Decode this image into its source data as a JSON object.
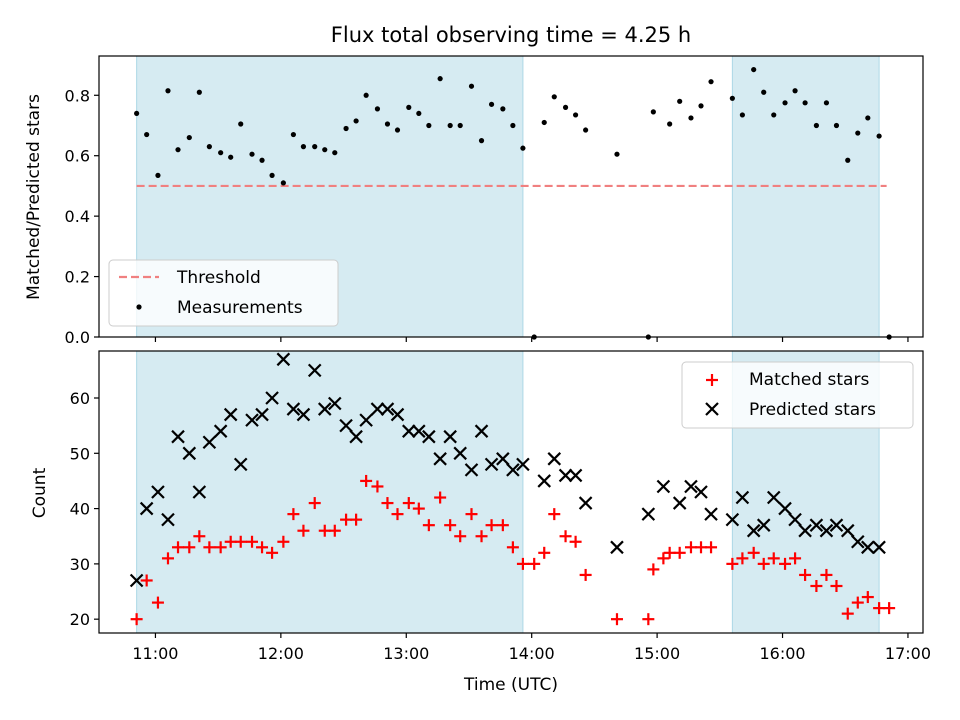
{
  "title": "Flux total observing time = 4.25 h",
  "chart_data": [
    {
      "type": "scatter",
      "panel": "top",
      "ylabel": "Matched/Predicted stars",
      "xlabel": "",
      "ylim": [
        0,
        0.93
      ],
      "yticks": [
        0.0,
        0.2,
        0.4,
        0.6,
        0.8
      ],
      "ytick_labels": [
        "0.0",
        "0.2",
        "0.4",
        "0.6",
        "0.8"
      ],
      "threshold": {
        "name": "Threshold",
        "value": 0.5,
        "x_start": 10.85,
        "x_end": 16.83,
        "color": "#f08080"
      },
      "legend": {
        "placement": "lower-left",
        "entries": [
          "Threshold",
          "Measurements"
        ]
      },
      "series": [
        {
          "name": "Measurements",
          "color": "#000000",
          "x": [
            10.85,
            10.93,
            11.02,
            11.1,
            11.18,
            11.27,
            11.35,
            11.43,
            11.52,
            11.6,
            11.68,
            11.77,
            11.85,
            11.93,
            12.02,
            12.1,
            12.18,
            12.27,
            12.35,
            12.43,
            12.52,
            12.6,
            12.68,
            12.77,
            12.85,
            12.93,
            13.02,
            13.1,
            13.18,
            13.27,
            13.35,
            13.43,
            13.52,
            13.6,
            13.68,
            13.77,
            13.85,
            13.93,
            14.02,
            14.1,
            14.18,
            14.27,
            14.35,
            14.43,
            14.68,
            14.93,
            14.97,
            15.1,
            15.18,
            15.27,
            15.35,
            15.43,
            15.6,
            15.68,
            15.77,
            15.85,
            15.93,
            16.02,
            16.1,
            16.18,
            16.27,
            16.35,
            16.43,
            16.52,
            16.6,
            16.68,
            16.77,
            16.85
          ],
          "y": [
            0.74,
            0.67,
            0.535,
            0.815,
            0.62,
            0.66,
            0.81,
            0.63,
            0.61,
            0.595,
            0.705,
            0.605,
            0.585,
            0.535,
            0.51,
            0.67,
            0.63,
            0.63,
            0.62,
            0.61,
            0.69,
            0.715,
            0.8,
            0.755,
            0.705,
            0.685,
            0.76,
            0.74,
            0.7,
            0.855,
            0.7,
            0.7,
            0.83,
            0.65,
            0.77,
            0.755,
            0.7,
            0.625,
            0.0,
            0.71,
            0.795,
            0.76,
            0.735,
            0.685,
            0.605,
            0.0,
            0.745,
            0.705,
            0.78,
            0.725,
            0.765,
            0.845,
            0.79,
            0.735,
            0.885,
            0.81,
            0.735,
            0.775,
            0.815,
            0.775,
            0.7,
            0.775,
            0.7,
            0.585,
            0.675,
            0.725,
            0.665,
            0.0
          ]
        }
      ]
    },
    {
      "type": "scatter",
      "panel": "bottom",
      "ylabel": "Count",
      "xlabel": "Time (UTC)",
      "ylim": [
        17.5,
        68.5
      ],
      "yticks": [
        20,
        30,
        40,
        50,
        60
      ],
      "ytick_labels": [
        "20",
        "30",
        "40",
        "50",
        "60"
      ],
      "legend": {
        "placement": "top-right",
        "entries": [
          "Matched stars",
          "Predicted stars"
        ]
      },
      "series": [
        {
          "name": "Matched stars",
          "marker": "plus",
          "color": "#ff0000",
          "x": [
            10.85,
            10.93,
            11.02,
            11.1,
            11.18,
            11.27,
            11.35,
            11.43,
            11.52,
            11.6,
            11.68,
            11.77,
            11.85,
            11.93,
            12.02,
            12.1,
            12.18,
            12.27,
            12.35,
            12.43,
            12.52,
            12.6,
            12.68,
            12.77,
            12.85,
            12.93,
            13.02,
            13.1,
            13.18,
            13.27,
            13.35,
            13.43,
            13.52,
            13.6,
            13.68,
            13.77,
            13.85,
            13.93,
            14.02,
            14.1,
            14.18,
            14.27,
            14.35,
            14.43,
            14.68,
            14.93,
            14.97,
            15.05,
            15.1,
            15.18,
            15.27,
            15.35,
            15.43,
            15.6,
            15.68,
            15.77,
            15.85,
            15.93,
            16.02,
            16.1,
            16.18,
            16.27,
            16.35,
            16.43,
            16.52,
            16.6,
            16.68,
            16.77,
            16.85
          ],
          "y": [
            20,
            27,
            23,
            31,
            33,
            33,
            35,
            33,
            33,
            34,
            34,
            34,
            33,
            32,
            34,
            39,
            36,
            41,
            36,
            36,
            38,
            38,
            45,
            44,
            41,
            39,
            41,
            40,
            37,
            42,
            37,
            35,
            39,
            35,
            37,
            37,
            33,
            30,
            30,
            32,
            39,
            35,
            34,
            28,
            20,
            20,
            29,
            31,
            32,
            32,
            33,
            33,
            33,
            30,
            31,
            32,
            30,
            31,
            30,
            31,
            28,
            26,
            28,
            26,
            21,
            23,
            24,
            22,
            22
          ]
        },
        {
          "name": "Predicted stars",
          "marker": "x",
          "color": "#000000",
          "x": [
            10.85,
            10.93,
            11.02,
            11.1,
            11.18,
            11.27,
            11.35,
            11.43,
            11.52,
            11.6,
            11.68,
            11.77,
            11.85,
            11.93,
            12.02,
            12.1,
            12.18,
            12.27,
            12.35,
            12.43,
            12.52,
            12.6,
            12.68,
            12.77,
            12.85,
            12.93,
            13.02,
            13.1,
            13.18,
            13.27,
            13.35,
            13.43,
            13.52,
            13.6,
            13.68,
            13.77,
            13.85,
            13.93,
            14.1,
            14.18,
            14.27,
            14.35,
            14.43,
            14.68,
            14.93,
            15.05,
            15.18,
            15.27,
            15.35,
            15.43,
            15.6,
            15.68,
            15.77,
            15.85,
            15.93,
            16.02,
            16.1,
            16.18,
            16.27,
            16.35,
            16.43,
            16.52,
            16.6,
            16.68,
            16.77
          ],
          "y": [
            27,
            40,
            43,
            38,
            53,
            50,
            43,
            52,
            54,
            57,
            48,
            56,
            57,
            60,
            67,
            58,
            57,
            65,
            58,
            59,
            55,
            53,
            56,
            58,
            58,
            57,
            54,
            54,
            53,
            49,
            53,
            50,
            47,
            54,
            48,
            49,
            47,
            48,
            45,
            49,
            46,
            46,
            41,
            33,
            39,
            44,
            41,
            44,
            43,
            39,
            38,
            42,
            36,
            37,
            42,
            40,
            38,
            36,
            37,
            36,
            37,
            36,
            34,
            33,
            33
          ]
        }
      ]
    }
  ],
  "xaxis": {
    "xlim": [
      10.55,
      17.12
    ],
    "ticks": [
      11,
      12,
      13,
      14,
      15,
      16,
      17
    ],
    "tick_labels": [
      "11:00",
      "12:00",
      "13:00",
      "14:00",
      "15:00",
      "16:00",
      "17:00"
    ]
  },
  "shaded_intervals": [
    [
      10.85,
      13.93
    ],
    [
      15.6,
      16.77
    ]
  ],
  "colors": {
    "shade": "#add8e6",
    "threshold": "#f08080",
    "matched": "#ff0000",
    "predicted": "#000000",
    "measurement": "#000000"
  }
}
